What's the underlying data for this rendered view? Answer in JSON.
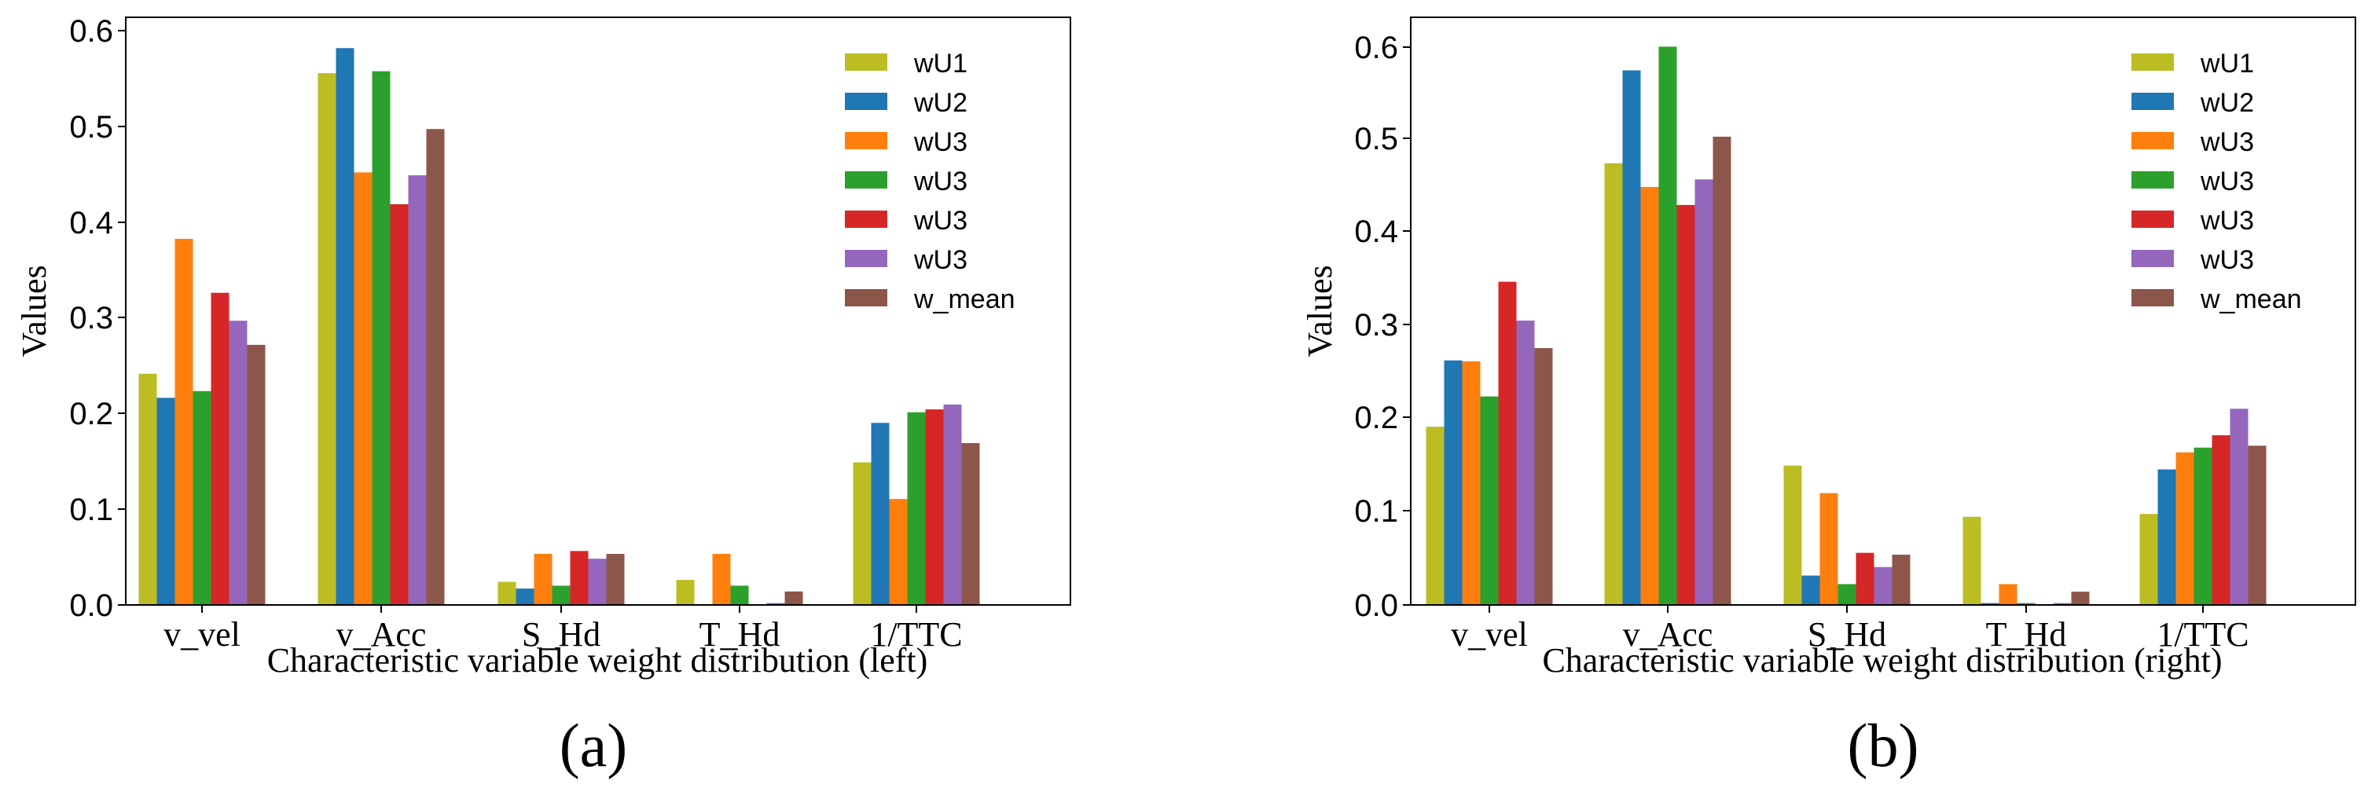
{
  "chart_data": [
    {
      "type": "bar",
      "panel_label": "(a)",
      "xlabel": "Characteristic variable weight distribution (left)",
      "ylabel": "Values",
      "ylim": [
        0,
        0.61
      ],
      "yticks": [
        "0.0",
        "0.1",
        "0.2",
        "0.3",
        "0.4",
        "0.5",
        "0.6"
      ],
      "categories": [
        "v_vel",
        "v_Acc",
        "S_Hd",
        "T_Hd",
        "1/TTC"
      ],
      "legend_position": "top-right",
      "series": [
        {
          "name": "wU1",
          "color": "#bcbd22",
          "values": [
            0.24,
            0.552,
            0.024,
            0.026,
            0.148
          ]
        },
        {
          "name": "wU2",
          "color": "#1f77b4",
          "values": [
            0.215,
            0.578,
            0.017,
            0.0,
            0.189
          ]
        },
        {
          "name": "wU3",
          "color": "#ff7f0e",
          "values": [
            0.38,
            0.449,
            0.053,
            0.053,
            0.11
          ]
        },
        {
          "name": "wU3",
          "color": "#2ca02c",
          "values": [
            0.222,
            0.554,
            0.02,
            0.02,
            0.2
          ]
        },
        {
          "name": "wU3",
          "color": "#d62728",
          "values": [
            0.324,
            0.416,
            0.056,
            0.0,
            0.203
          ]
        },
        {
          "name": "wU3",
          "color": "#9467bd",
          "values": [
            0.295,
            0.446,
            0.048,
            0.002,
            0.208
          ]
        },
        {
          "name": "w_mean",
          "color": "#8c564b",
          "values": [
            0.27,
            0.494,
            0.053,
            0.014,
            0.168
          ]
        }
      ]
    },
    {
      "type": "bar",
      "panel_label": "(b)",
      "xlabel": "Characteristic variable weight distribution (right)",
      "ylabel": "Values",
      "ylim": [
        0,
        0.62
      ],
      "yticks": [
        "0.0",
        "0.1",
        "0.2",
        "0.3",
        "0.4",
        "0.5",
        "0.6"
      ],
      "categories": [
        "v_vel",
        "v_Acc",
        "S_Hd",
        "T_Hd",
        "1/TTC"
      ],
      "legend_position": "top-right",
      "series": [
        {
          "name": "wU1",
          "color": "#bcbd22",
          "values": [
            0.188,
            0.466,
            0.147,
            0.093,
            0.096
          ]
        },
        {
          "name": "wU2",
          "color": "#1f77b4",
          "values": [
            0.258,
            0.564,
            0.031,
            0.002,
            0.143
          ]
        },
        {
          "name": "wU3",
          "color": "#ff7f0e",
          "values": [
            0.257,
            0.441,
            0.118,
            0.022,
            0.161
          ]
        },
        {
          "name": "wU3",
          "color": "#2ca02c",
          "values": [
            0.22,
            0.589,
            0.022,
            0.002,
            0.166
          ]
        },
        {
          "name": "wU3",
          "color": "#d62728",
          "values": [
            0.341,
            0.422,
            0.055,
            0.0,
            0.179
          ]
        },
        {
          "name": "wU3",
          "color": "#9467bd",
          "values": [
            0.3,
            0.449,
            0.04,
            0.002,
            0.207
          ]
        },
        {
          "name": "w_mean",
          "color": "#8c564b",
          "values": [
            0.271,
            0.494,
            0.053,
            0.014,
            0.168
          ]
        }
      ]
    }
  ]
}
